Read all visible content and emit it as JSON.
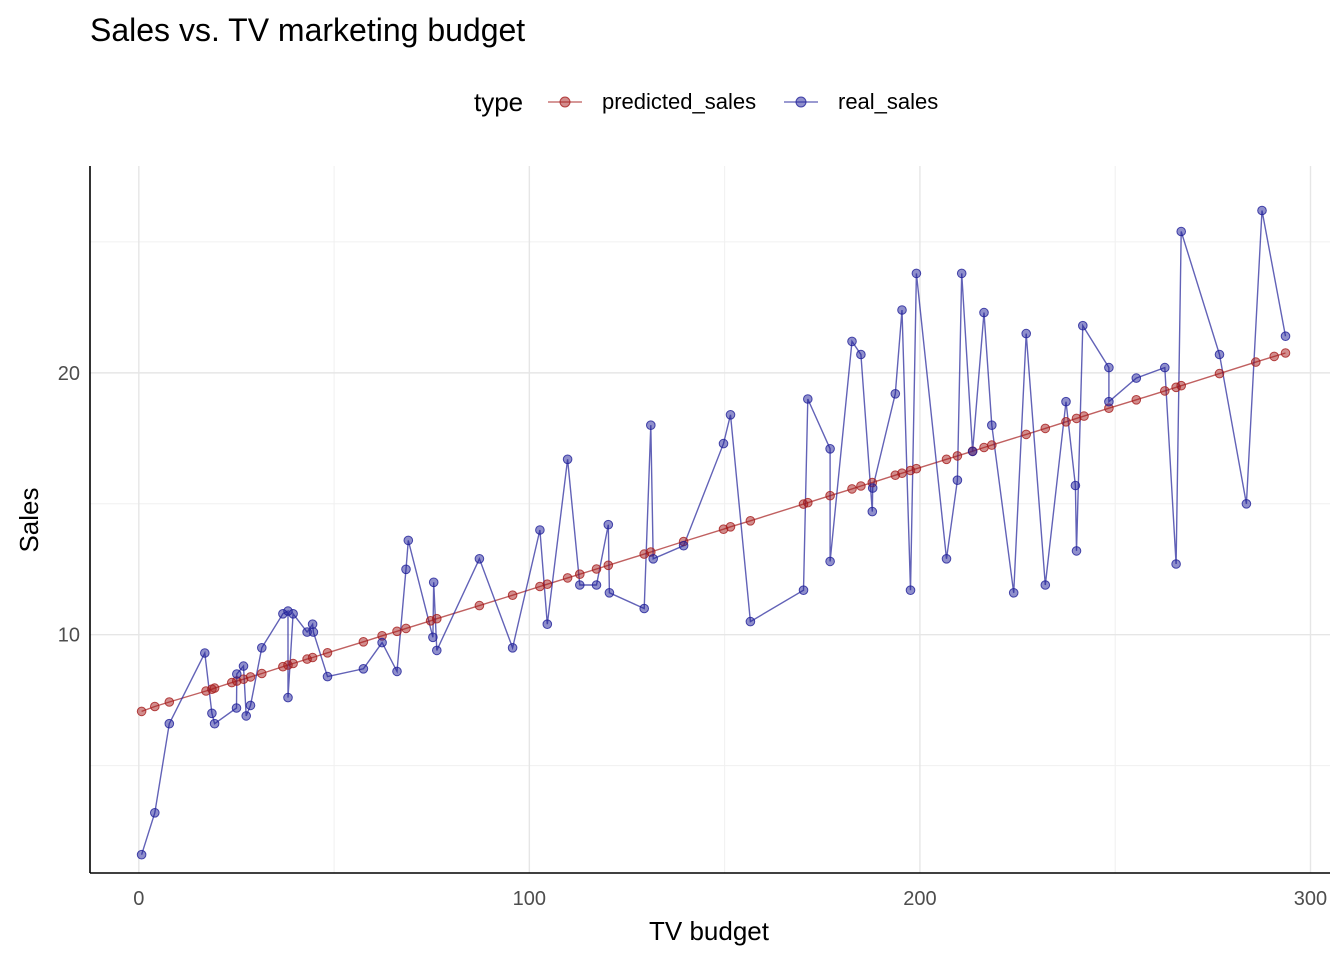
{
  "chart_data": {
    "type": "line",
    "title": "Sales vs. TV marketing budget",
    "xlabel": "TV budget",
    "ylabel": "Sales",
    "xlim": [
      -12.5,
      305
    ],
    "ylim": [
      0.9,
      27.9
    ],
    "x_ticks": [
      0,
      100,
      200,
      300
    ],
    "y_ticks": [
      10,
      20
    ],
    "grid": true,
    "legend": {
      "title": "type",
      "position": "top"
    },
    "series": [
      {
        "name": "predicted_sales",
        "color": "#a51c1c",
        "points": [
          [
            0.7,
            7.07
          ],
          [
            4.1,
            7.26
          ],
          [
            7.8,
            7.43
          ],
          [
            17.2,
            7.85
          ],
          [
            18.7,
            7.92
          ],
          [
            19.4,
            7.96
          ],
          [
            23.8,
            8.17
          ],
          [
            25.1,
            8.23
          ],
          [
            26.8,
            8.3
          ],
          [
            28.6,
            8.39
          ],
          [
            31.5,
            8.52
          ],
          [
            36.9,
            8.78
          ],
          [
            38.2,
            8.84
          ],
          [
            39.5,
            8.9
          ],
          [
            43.1,
            9.07
          ],
          [
            44.5,
            9.13
          ],
          [
            48.3,
            9.31
          ],
          [
            57.5,
            9.73
          ],
          [
            62.3,
            9.96
          ],
          [
            66.1,
            10.13
          ],
          [
            68.4,
            10.24
          ],
          [
            74.7,
            10.53
          ],
          [
            76.3,
            10.61
          ],
          [
            87.2,
            11.11
          ],
          [
            95.7,
            11.51
          ],
          [
            102.7,
            11.84
          ],
          [
            104.6,
            11.93
          ],
          [
            109.8,
            12.17
          ],
          [
            112.9,
            12.31
          ],
          [
            117.2,
            12.51
          ],
          [
            120.2,
            12.65
          ],
          [
            129.4,
            13.08
          ],
          [
            131.1,
            13.16
          ],
          [
            139.5,
            13.56
          ],
          [
            149.7,
            14.03
          ],
          [
            151.5,
            14.12
          ],
          [
            156.6,
            14.35
          ],
          [
            170.2,
            14.99
          ],
          [
            171.3,
            15.04
          ],
          [
            177.0,
            15.31
          ],
          [
            182.6,
            15.57
          ],
          [
            184.9,
            15.68
          ],
          [
            187.8,
            15.81
          ],
          [
            193.7,
            16.09
          ],
          [
            195.4,
            16.17
          ],
          [
            197.6,
            16.27
          ],
          [
            199.1,
            16.34
          ],
          [
            206.8,
            16.7
          ],
          [
            209.6,
            16.83
          ],
          [
            213.5,
            17.01
          ],
          [
            216.4,
            17.15
          ],
          [
            218.4,
            17.24
          ],
          [
            227.2,
            17.65
          ],
          [
            232.1,
            17.88
          ],
          [
            237.4,
            18.13
          ],
          [
            240.1,
            18.26
          ],
          [
            242.0,
            18.35
          ],
          [
            248.4,
            18.65
          ],
          [
            255.4,
            18.97
          ],
          [
            262.7,
            19.31
          ],
          [
            265.6,
            19.45
          ],
          [
            266.9,
            19.51
          ],
          [
            276.7,
            19.97
          ],
          [
            286.0,
            20.41
          ],
          [
            290.7,
            20.63
          ],
          [
            293.6,
            20.76
          ]
        ]
      },
      {
        "name": "real_sales",
        "color": "#1f1f99",
        "points": [
          [
            0.7,
            1.6
          ],
          [
            4.1,
            3.2
          ],
          [
            7.8,
            6.6
          ],
          [
            16.9,
            9.3
          ],
          [
            18.7,
            7.0
          ],
          [
            19.4,
            6.6
          ],
          [
            25.0,
            7.2
          ],
          [
            25.1,
            8.5
          ],
          [
            26.8,
            8.8
          ],
          [
            27.5,
            6.9
          ],
          [
            28.6,
            7.3
          ],
          [
            31.5,
            9.5
          ],
          [
            36.9,
            10.8
          ],
          [
            38.2,
            10.9
          ],
          [
            38.2,
            7.6
          ],
          [
            39.5,
            10.8
          ],
          [
            43.1,
            10.1
          ],
          [
            44.5,
            10.4
          ],
          [
            44.7,
            10.1
          ],
          [
            48.3,
            8.4
          ],
          [
            57.5,
            8.7
          ],
          [
            62.3,
            9.7
          ],
          [
            66.1,
            8.6
          ],
          [
            68.4,
            12.5
          ],
          [
            69.0,
            13.6
          ],
          [
            75.3,
            9.9
          ],
          [
            75.5,
            12.0
          ],
          [
            76.3,
            9.4
          ],
          [
            87.2,
            12.9
          ],
          [
            95.7,
            9.5
          ],
          [
            102.7,
            14.0
          ],
          [
            104.6,
            10.4
          ],
          [
            109.8,
            16.7
          ],
          [
            112.9,
            11.9
          ],
          [
            117.2,
            11.9
          ],
          [
            120.2,
            14.2
          ],
          [
            120.5,
            11.6
          ],
          [
            129.4,
            11.0
          ],
          [
            131.1,
            18.0
          ],
          [
            131.7,
            12.9
          ],
          [
            139.5,
            13.4
          ],
          [
            149.7,
            17.3
          ],
          [
            151.5,
            18.4
          ],
          [
            156.6,
            10.5
          ],
          [
            170.2,
            11.7
          ],
          [
            171.3,
            19.0
          ],
          [
            177.0,
            17.1
          ],
          [
            177.0,
            12.8
          ],
          [
            182.6,
            21.2
          ],
          [
            184.9,
            20.7
          ],
          [
            187.8,
            14.7
          ],
          [
            187.9,
            15.6
          ],
          [
            193.7,
            19.2
          ],
          [
            195.4,
            22.4
          ],
          [
            197.6,
            11.7
          ],
          [
            199.1,
            23.8
          ],
          [
            206.8,
            12.9
          ],
          [
            209.6,
            15.9
          ],
          [
            210.7,
            23.8
          ],
          [
            213.5,
            17.0
          ],
          [
            216.4,
            22.3
          ],
          [
            218.4,
            18.0
          ],
          [
            224.0,
            11.6
          ],
          [
            227.2,
            21.5
          ],
          [
            232.1,
            11.9
          ],
          [
            237.4,
            18.9
          ],
          [
            239.8,
            15.7
          ],
          [
            240.1,
            13.2
          ],
          [
            241.7,
            21.8
          ],
          [
            248.4,
            20.2
          ],
          [
            248.4,
            18.9
          ],
          [
            255.4,
            19.8
          ],
          [
            262.7,
            20.2
          ],
          [
            265.6,
            12.7
          ],
          [
            266.9,
            25.4
          ],
          [
            276.7,
            20.7
          ],
          [
            283.6,
            15.0
          ],
          [
            287.6,
            26.2
          ],
          [
            293.6,
            21.4
          ]
        ]
      }
    ]
  }
}
